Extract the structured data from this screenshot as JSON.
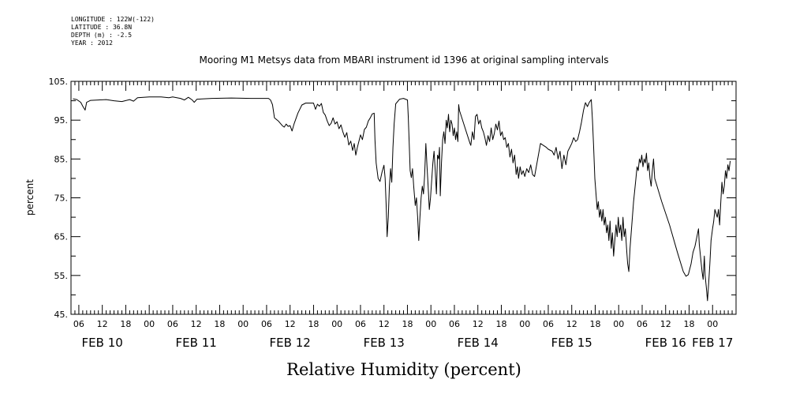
{
  "meta": {
    "longitude": "LONGITUDE : 122W(-122)",
    "latitude": "LATITUDE : 36.8N",
    "depth": "DEPTH (m) : -2.5",
    "year": "YEAR : 2012"
  },
  "chart_data": {
    "type": "line",
    "title": "Mooring M1 Metsys data from MBARI instrument id 1396 at original sampling intervals",
    "xlabel": "Relative Humidity (percent)",
    "ylabel": "percent",
    "ylim": [
      45,
      105
    ],
    "yticks": [
      45,
      55,
      65,
      75,
      85,
      95,
      105
    ],
    "ytick_labels": [
      "45.",
      "55.",
      "65.",
      "75.",
      "85.",
      "95.",
      "105."
    ],
    "xlim": [
      4,
      174
    ],
    "xticks": [
      6,
      12,
      18,
      24,
      30,
      36,
      42,
      48,
      54,
      60,
      66,
      72,
      78,
      84,
      90,
      96,
      102,
      108,
      114,
      120,
      126,
      132,
      138,
      144,
      150,
      156,
      162,
      168
    ],
    "xtick_labels": [
      "06",
      "12",
      "18",
      "00",
      "06",
      "12",
      "18",
      "00",
      "06",
      "12",
      "18",
      "00",
      "06",
      "12",
      "18",
      "00",
      "06",
      "12",
      "18",
      "00",
      "06",
      "12",
      "18",
      "00",
      "06",
      "12",
      "18",
      "00"
    ],
    "date_labels": [
      {
        "label": "FEB 10",
        "x": 12
      },
      {
        "label": "FEB 11",
        "x": 36
      },
      {
        "label": "FEB 12",
        "x": 60
      },
      {
        "label": "FEB 13",
        "x": 84
      },
      {
        "label": "FEB 14",
        "x": 108
      },
      {
        "label": "FEB 15",
        "x": 132
      },
      {
        "label": "FEB 16",
        "x": 156
      },
      {
        "label": "FEB 17",
        "x": 168
      }
    ],
    "x_unit": "hours since FEB 10 00:00",
    "series": [
      {
        "name": "",
        "points": [
          [
            4.5,
            100.5
          ],
          [
            5.5,
            100.3
          ],
          [
            6.5,
            99.6
          ],
          [
            7,
            98.6
          ],
          [
            7.6,
            97.6
          ],
          [
            8,
            99.6
          ],
          [
            9,
            100.1
          ],
          [
            11,
            100.2
          ],
          [
            13,
            100.3
          ],
          [
            15,
            100.0
          ],
          [
            17,
            99.8
          ],
          [
            19,
            100.3
          ],
          [
            20,
            99.9
          ],
          [
            21,
            100.8
          ],
          [
            24,
            101.0
          ],
          [
            27,
            101.0
          ],
          [
            29,
            100.8
          ],
          [
            30,
            101.0
          ],
          [
            32,
            100.6
          ],
          [
            33,
            100.2
          ],
          [
            34,
            100.9
          ],
          [
            35,
            100.2
          ],
          [
            35.5,
            99.6
          ],
          [
            36.2,
            100.4
          ],
          [
            40,
            100.6
          ],
          [
            45,
            100.7
          ],
          [
            50,
            100.6
          ],
          [
            54.5,
            100.6
          ],
          [
            55,
            100.2
          ],
          [
            55.5,
            99.0
          ],
          [
            56,
            95.6
          ],
          [
            57,
            94.8
          ],
          [
            58,
            93.6
          ],
          [
            58.5,
            93.2
          ],
          [
            59,
            94.0
          ],
          [
            59.5,
            93.4
          ],
          [
            60,
            93.6
          ],
          [
            60.5,
            92.2
          ],
          [
            61,
            94.0
          ],
          [
            62,
            96.8
          ],
          [
            63,
            98.9
          ],
          [
            64,
            99.4
          ],
          [
            66,
            99.4
          ],
          [
            66.5,
            97.8
          ],
          [
            67,
            99.1
          ],
          [
            67.5,
            98.6
          ],
          [
            68,
            99.3
          ],
          [
            68.5,
            97.0
          ],
          [
            69,
            96.3
          ],
          [
            69.5,
            94.8
          ],
          [
            70,
            93.6
          ],
          [
            70.5,
            94.2
          ],
          [
            71,
            95.6
          ],
          [
            71.5,
            94.0
          ],
          [
            72,
            94.6
          ],
          [
            72.5,
            92.8
          ],
          [
            73,
            93.8
          ],
          [
            73.5,
            92.0
          ],
          [
            74,
            90.6
          ],
          [
            74.5,
            91.8
          ],
          [
            75,
            88.6
          ],
          [
            75.5,
            89.6
          ],
          [
            76,
            87.2
          ],
          [
            76.4,
            89.0
          ],
          [
            76.8,
            86.0
          ],
          [
            77.2,
            88.0
          ],
          [
            77.6,
            89.6
          ],
          [
            78,
            91.2
          ],
          [
            78.5,
            90.0
          ],
          [
            79,
            92.6
          ],
          [
            79.5,
            93.2
          ],
          [
            80,
            94.8
          ],
          [
            80.5,
            95.6
          ],
          [
            81,
            96.6
          ],
          [
            81.5,
            96.8
          ],
          [
            81.7,
            90.0
          ],
          [
            82,
            84.0
          ],
          [
            82.5,
            80.0
          ],
          [
            83,
            79.2
          ],
          [
            83.5,
            81.6
          ],
          [
            84,
            83.4
          ],
          [
            84.3,
            80.0
          ],
          [
            84.6,
            72.0
          ],
          [
            84.8,
            65.0
          ],
          [
            85.1,
            70.0
          ],
          [
            85.4,
            78.0
          ],
          [
            85.7,
            82.5
          ],
          [
            86,
            79.0
          ],
          [
            86.3,
            88.0
          ],
          [
            86.6,
            94.0
          ],
          [
            87,
            99.2
          ],
          [
            88,
            100.4
          ],
          [
            89,
            100.6
          ],
          [
            90,
            100.2
          ],
          [
            90.2,
            96.0
          ],
          [
            90.5,
            88.0
          ],
          [
            90.7,
            82.0
          ],
          [
            91,
            80.2
          ],
          [
            91.3,
            82.5
          ],
          [
            91.6,
            78.0
          ],
          [
            92,
            73.0
          ],
          [
            92.3,
            75.0
          ],
          [
            92.6,
            70.0
          ],
          [
            92.9,
            64.0
          ],
          [
            93.2,
            70.0
          ],
          [
            93.5,
            75.0
          ],
          [
            93.8,
            78.0
          ],
          [
            94.1,
            76.0
          ],
          [
            94.4,
            81.0
          ],
          [
            94.7,
            89.0
          ],
          [
            95,
            83.0
          ],
          [
            95.3,
            78.0
          ],
          [
            95.6,
            72.0
          ],
          [
            95.9,
            75.0
          ],
          [
            96.2,
            79.5
          ],
          [
            96.5,
            84.0
          ],
          [
            96.8,
            87.0
          ],
          [
            97.1,
            82.0
          ],
          [
            97.4,
            76.0
          ],
          [
            97.7,
            86.0
          ],
          [
            98,
            85.0
          ],
          [
            98.2,
            88.0
          ],
          [
            98.4,
            75.5
          ],
          [
            98.7,
            84.0
          ],
          [
            99,
            90.0
          ],
          [
            99.3,
            92.0
          ],
          [
            99.6,
            89.0
          ],
          [
            99.9,
            95.0
          ],
          [
            100.2,
            93.0
          ],
          [
            100.5,
            96.5
          ],
          [
            100.8,
            92.0
          ],
          [
            101.1,
            95.0
          ],
          [
            101.4,
            94.0
          ],
          [
            101.7,
            91.0
          ],
          [
            102,
            93.0
          ],
          [
            102.3,
            90.0
          ],
          [
            102.6,
            92.0
          ],
          [
            102.9,
            89.5
          ],
          [
            103.1,
            99.0
          ],
          [
            103.3,
            97.5
          ],
          [
            106,
            89.0
          ],
          [
            106.2,
            88.5
          ],
          [
            106.6,
            92.0
          ],
          [
            107,
            90.0
          ],
          [
            107.4,
            96.0
          ],
          [
            107.8,
            96.5
          ],
          [
            108.2,
            94.0
          ],
          [
            108.6,
            95.0
          ],
          [
            109,
            93.0
          ],
          [
            109.4,
            92.0
          ],
          [
            109.8,
            90.5
          ],
          [
            110.2,
            88.5
          ],
          [
            110.6,
            91.0
          ],
          [
            111,
            89.5
          ],
          [
            111.4,
            93.0
          ],
          [
            111.8,
            90.0
          ],
          [
            112.2,
            91.5
          ],
          [
            112.6,
            94.0
          ],
          [
            113,
            92.5
          ],
          [
            113.4,
            94.8
          ],
          [
            113.8,
            91.0
          ],
          [
            114.2,
            92.0
          ],
          [
            114.6,
            90.0
          ],
          [
            115,
            90.5
          ],
          [
            115.4,
            88.0
          ],
          [
            115.8,
            89.0
          ],
          [
            116.2,
            85.5
          ],
          [
            116.6,
            87.5
          ],
          [
            117,
            84.0
          ],
          [
            117.4,
            86.0
          ],
          [
            117.8,
            81.0
          ],
          [
            118.1,
            83.0
          ],
          [
            118.4,
            80.0
          ],
          [
            118.8,
            83.0
          ],
          [
            119.2,
            81.0
          ],
          [
            119.6,
            82.0
          ],
          [
            120,
            80.5
          ],
          [
            120.5,
            82.5
          ],
          [
            121,
            81.5
          ],
          [
            121.5,
            83.5
          ],
          [
            122,
            81.0
          ],
          [
            122.5,
            80.5
          ],
          [
            124,
            89.0
          ],
          [
            125.5,
            88.0
          ],
          [
            126,
            87.5
          ],
          [
            127,
            87.0
          ],
          [
            127.5,
            86.0
          ],
          [
            128,
            88.0
          ],
          [
            128.5,
            85.0
          ],
          [
            129,
            87.0
          ],
          [
            129.5,
            82.5
          ],
          [
            130,
            86.0
          ],
          [
            130.5,
            83.5
          ],
          [
            131,
            87.0
          ],
          [
            131.5,
            88.0
          ],
          [
            132,
            89.0
          ],
          [
            132.5,
            90.5
          ],
          [
            133,
            89.5
          ],
          [
            133.5,
            90.0
          ],
          [
            134,
            92.0
          ],
          [
            134.5,
            94.5
          ],
          [
            135,
            97.5
          ],
          [
            135.5,
            99.5
          ],
          [
            136,
            98.5
          ],
          [
            136.5,
            99.6
          ],
          [
            137,
            100.3
          ],
          [
            137.3,
            95.0
          ],
          [
            137.6,
            88.0
          ],
          [
            137.9,
            80.0
          ],
          [
            138.2,
            76.0
          ],
          [
            138.5,
            72.0
          ],
          [
            138.8,
            74.0
          ],
          [
            139.1,
            70.0
          ],
          [
            139.4,
            72.0
          ],
          [
            139.7,
            69.0
          ],
          [
            140,
            72.0
          ],
          [
            140.3,
            68.0
          ],
          [
            140.6,
            70.0
          ],
          [
            140.9,
            66.0
          ],
          [
            141.2,
            68.0
          ],
          [
            141.5,
            64.0
          ],
          [
            141.8,
            69.0
          ],
          [
            142.1,
            62.0
          ],
          [
            142.4,
            66.0
          ],
          [
            142.7,
            60.0
          ],
          [
            143,
            64.0
          ],
          [
            143.3,
            68.0
          ],
          [
            143.6,
            65.0
          ],
          [
            143.9,
            70.0
          ],
          [
            144.2,
            66.0
          ],
          [
            144.5,
            68.0
          ],
          [
            144.8,
            64.0
          ],
          [
            145.1,
            70.0
          ],
          [
            145.4,
            65.0
          ],
          [
            145.7,
            67.0
          ],
          [
            146,
            62.0
          ],
          [
            146.3,
            58.0
          ],
          [
            146.6,
            56.0
          ],
          [
            146.9,
            62.0
          ],
          [
            147.2,
            66.0
          ],
          [
            147.5,
            70.0
          ],
          [
            147.8,
            74.0
          ],
          [
            148.1,
            77.0
          ],
          [
            148.4,
            80.0
          ],
          [
            148.7,
            83.0
          ],
          [
            149,
            82.0
          ],
          [
            149.3,
            85.0
          ],
          [
            149.6,
            84.0
          ],
          [
            149.9,
            86.0
          ],
          [
            150.2,
            83.0
          ],
          [
            150.5,
            85.0
          ],
          [
            150.8,
            84.0
          ],
          [
            151.1,
            86.5
          ],
          [
            151.4,
            82.0
          ],
          [
            151.7,
            84.0
          ],
          [
            152,
            80.0
          ],
          [
            152.3,
            78.0
          ],
          [
            152.6,
            82.0
          ],
          [
            152.9,
            85.0
          ],
          [
            153.2,
            80.0
          ],
          [
            155,
            74.0
          ],
          [
            157,
            68.0
          ],
          [
            159,
            61.0
          ],
          [
            160.5,
            56.0
          ],
          [
            161.2,
            54.8
          ],
          [
            161.8,
            55.2
          ],
          [
            162.5,
            58.0
          ],
          [
            163,
            61.0
          ],
          [
            163.5,
            62.5
          ],
          [
            164,
            65.0
          ],
          [
            164.4,
            67.0
          ],
          [
            164.6,
            63.0
          ],
          [
            165,
            59.0
          ],
          [
            165.3,
            56.0
          ],
          [
            165.6,
            54.0
          ],
          [
            165.9,
            60.0
          ],
          [
            166.1,
            55.0
          ],
          [
            166.4,
            52.0
          ],
          [
            166.7,
            48.5
          ],
          [
            167,
            53.0
          ],
          [
            167.3,
            58.0
          ],
          [
            167.6,
            64.0
          ],
          [
            168,
            67.0
          ],
          [
            168.3,
            69.0
          ],
          [
            168.6,
            72.0
          ],
          [
            168.9,
            71.0
          ],
          [
            169.2,
            70.0
          ],
          [
            169.5,
            72.0
          ],
          [
            169.8,
            68.0
          ],
          [
            170.1,
            74.0
          ],
          [
            170.4,
            79.0
          ],
          [
            170.7,
            76.0
          ],
          [
            171,
            78.0
          ],
          [
            171.3,
            82.0
          ],
          [
            171.6,
            80.0
          ],
          [
            171.9,
            83.5
          ],
          [
            172.2,
            82.0
          ],
          [
            172.5,
            84.5
          ]
        ]
      }
    ]
  }
}
